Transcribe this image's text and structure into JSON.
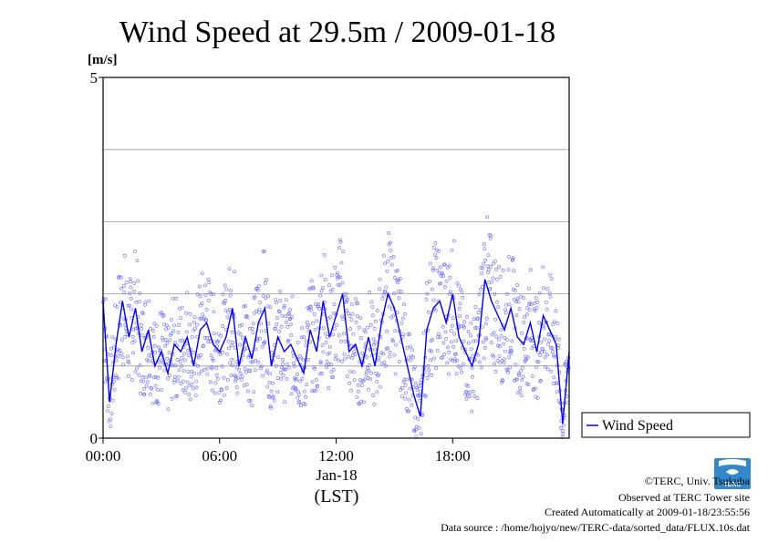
{
  "chart_data": {
    "type": "scatter",
    "title": "Wind Speed at 29.5m / 2009-01-18",
    "ylabel": "[m/s]",
    "ylim": [
      0,
      5
    ],
    "yticks": [
      "0",
      "5"
    ],
    "xlim": [
      0,
      1440
    ],
    "xticks": [
      {
        "value": 0,
        "label": "00:00"
      },
      {
        "value": 360,
        "label": "06:00"
      },
      {
        "value": 720,
        "label": "12:00"
      },
      {
        "value": 1080,
        "label": "18:00"
      }
    ],
    "date_label": "Jan-18",
    "time_zone_label": "(LST)",
    "grid": "horizontal",
    "legend_position": "right",
    "series": [
      {
        "name": "Wind Speed",
        "color": "#0000ee",
        "x": [
          0,
          20,
          40,
          60,
          80,
          100,
          120,
          140,
          160,
          180,
          200,
          220,
          240,
          260,
          280,
          300,
          320,
          340,
          360,
          380,
          400,
          420,
          440,
          460,
          480,
          500,
          520,
          540,
          560,
          580,
          600,
          620,
          640,
          660,
          680,
          700,
          720,
          740,
          760,
          780,
          800,
          820,
          840,
          860,
          880,
          900,
          920,
          940,
          960,
          980,
          1000,
          1020,
          1040,
          1060,
          1080,
          1100,
          1120,
          1140,
          1160,
          1180,
          1200,
          1220,
          1240,
          1260,
          1280,
          1300,
          1320,
          1340,
          1360,
          1380,
          1400,
          1420,
          1440
        ],
        "y": [
          1.9,
          0.5,
          1.3,
          1.9,
          1.4,
          1.8,
          1.2,
          1.5,
          1.0,
          1.2,
          0.9,
          1.3,
          1.2,
          1.4,
          1.0,
          1.5,
          1.6,
          1.3,
          1.2,
          1.4,
          1.8,
          1.0,
          1.4,
          1.1,
          1.6,
          1.8,
          1.0,
          1.4,
          1.2,
          1.3,
          1.1,
          0.9,
          1.5,
          1.2,
          1.9,
          1.4,
          1.7,
          2.0,
          1.2,
          1.3,
          1.0,
          1.4,
          1.0,
          1.6,
          2.0,
          1.8,
          1.4,
          1.0,
          0.6,
          0.3,
          1.5,
          1.8,
          1.9,
          1.6,
          2.0,
          1.4,
          1.2,
          1.0,
          1.3,
          2.2,
          1.9,
          1.7,
          1.5,
          1.8,
          1.4,
          1.3,
          1.6,
          1.2,
          1.7,
          1.5,
          1.3,
          0.2,
          1.2
        ]
      }
    ]
  },
  "credits": {
    "copyright": "©TERC, Univ. Tsukuba",
    "observed": "Observed at TERC Tower site",
    "created": "Created Automatically at 2009-01-18/23:55:56",
    "source": "Data source : /home/hojyo/new/TERC-data/sorted_data/FLUX.10s.dat",
    "logo_text": "TERC"
  }
}
